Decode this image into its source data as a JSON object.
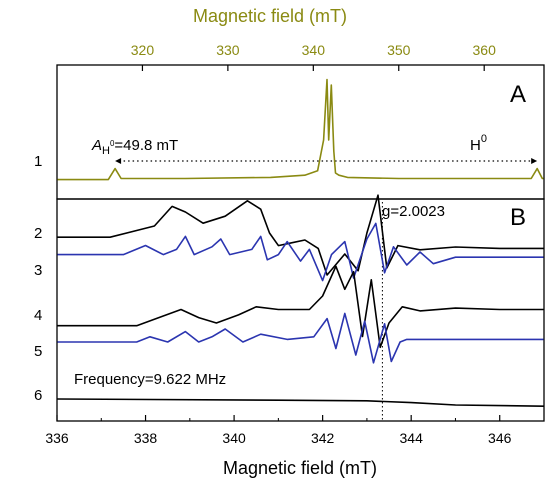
{
  "chart_data": {
    "type": "line",
    "top_axis": {
      "label": "Magnetic field (mT)",
      "ticks": [
        320,
        330,
        340,
        350,
        360
      ],
      "range": [
        310,
        367
      ],
      "color": "#8a8a12"
    },
    "bottom_axis": {
      "label": "Magnetic field (mT)",
      "ticks": [
        336,
        338,
        340,
        342,
        344,
        346
      ],
      "range": [
        336,
        347
      ]
    },
    "panels": [
      {
        "letter": "A",
        "annotation_left_italic": "A",
        "annotation_left_sub": "H",
        "annotation_left_sup": "0",
        "annotation_left_value": "=49.8 mT",
        "annotation_right": "H",
        "annotation_right_sup": "0",
        "span_x": [
          316.8,
          366.2
        ]
      },
      {
        "letter": "B",
        "g_label": "g=2.0023",
        "g_x": 343.35,
        "frequency_label": "Frequency=9.622 MHz"
      }
    ],
    "series": [
      {
        "name": "1",
        "panel": "A",
        "color": "#8a8a12",
        "x": [
          310,
          316.0,
          316.8,
          317.5,
          325,
          335,
          339,
          340.5,
          341.2,
          341.6,
          341.8,
          342.1,
          342.4,
          342.6,
          343,
          344,
          350,
          360,
          365.5,
          366.2,
          366.8,
          367
        ],
        "y": [
          0.04,
          0.04,
          0.14,
          0.05,
          0.05,
          0.06,
          0.08,
          0.12,
          0.4,
          0.95,
          0.4,
          0.9,
          0.3,
          0.1,
          0.08,
          0.06,
          0.05,
          0.05,
          0.05,
          0.14,
          0.05,
          0.05
        ]
      },
      {
        "name": "2",
        "panel": "B",
        "color": "#000000",
        "x": [
          336,
          337.2,
          338.2,
          338.6,
          338.9,
          339.3,
          339.8,
          340.3,
          340.6,
          340.8,
          341.0,
          341.3,
          341.6,
          341.9,
          342.1,
          342.5,
          342.8,
          343.0,
          343.25,
          343.45,
          343.7,
          344.2,
          345,
          346,
          347
        ],
        "y": [
          0.42,
          0.42,
          0.5,
          0.64,
          0.6,
          0.52,
          0.57,
          0.68,
          0.62,
          0.45,
          0.36,
          0.38,
          0.4,
          0.34,
          0.15,
          0.3,
          0.18,
          0.45,
          0.72,
          0.2,
          0.36,
          0.33,
          0.35,
          0.34,
          0.34
        ]
      },
      {
        "name": "3",
        "panel": "B",
        "color": "#2b35b0",
        "x": [
          336,
          337.5,
          338.0,
          338.4,
          338.7,
          338.9,
          339.1,
          339.5,
          339.7,
          339.9,
          340.4,
          340.6,
          340.75,
          341.0,
          341.2,
          341.5,
          341.7,
          342.0,
          342.2,
          342.5,
          342.7,
          343.0,
          343.2,
          343.4,
          343.6,
          343.9,
          344.2,
          344.5,
          345,
          347
        ],
        "y": [
          0.38,
          0.38,
          0.45,
          0.38,
          0.42,
          0.52,
          0.38,
          0.44,
          0.5,
          0.38,
          0.42,
          0.52,
          0.34,
          0.38,
          0.48,
          0.33,
          0.42,
          0.18,
          0.38,
          0.48,
          0.2,
          0.5,
          0.62,
          0.24,
          0.44,
          0.3,
          0.4,
          0.31,
          0.36,
          0.36
        ]
      },
      {
        "name": "4",
        "panel": "B",
        "color": "#000000",
        "x": [
          336,
          337.8,
          338.3,
          338.8,
          339.2,
          339.6,
          340.1,
          340.5,
          341,
          341.7,
          342.0,
          342.3,
          342.5,
          342.7,
          342.9,
          343.1,
          343.3,
          343.5,
          343.8,
          344.2,
          345,
          346,
          347
        ],
        "y": [
          0.18,
          0.18,
          0.24,
          0.3,
          0.24,
          0.2,
          0.26,
          0.32,
          0.3,
          0.3,
          0.4,
          0.62,
          0.45,
          0.58,
          0.1,
          0.52,
          0.02,
          0.2,
          0.32,
          0.29,
          0.31,
          0.3,
          0.3
        ]
      },
      {
        "name": "5",
        "panel": "B",
        "color": "#2b35b0",
        "x": [
          336,
          337.8,
          338.1,
          338.5,
          338.9,
          339.2,
          339.5,
          339.8,
          340.2,
          340.6,
          341.2,
          341.8,
          342.1,
          342.3,
          342.5,
          342.75,
          342.95,
          343.15,
          343.4,
          343.55,
          343.75,
          343.9,
          347
        ],
        "y": [
          0.1,
          0.1,
          0.14,
          0.1,
          0.18,
          0.1,
          0.14,
          0.2,
          0.1,
          0.16,
          0.12,
          0.14,
          0.28,
          0.05,
          0.32,
          0.0,
          0.26,
          -0.06,
          0.24,
          -0.05,
          0.1,
          0.12,
          0.12
        ]
      },
      {
        "name": "6",
        "panel": "B",
        "color": "#000000",
        "x": [
          336,
          341,
          343,
          344,
          345,
          347
        ],
        "y": [
          -0.1,
          -0.12,
          -0.13,
          -0.16,
          -0.2,
          -0.22
        ]
      }
    ]
  }
}
